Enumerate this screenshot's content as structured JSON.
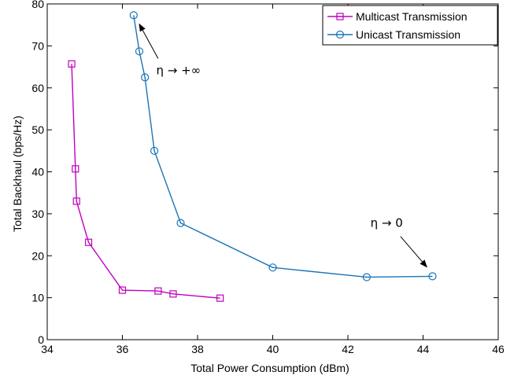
{
  "chart_data": {
    "type": "line",
    "title": "",
    "xlabel": "Total Power Consumption (dBm)",
    "ylabel": "Total Backhaul (bps/Hz)",
    "xlim": [
      34,
      46
    ],
    "ylim": [
      0,
      80
    ],
    "xticks": [
      34,
      36,
      38,
      40,
      42,
      44,
      46
    ],
    "yticks": [
      0,
      10,
      20,
      30,
      40,
      50,
      60,
      70,
      80
    ],
    "grid": false,
    "legend_position": "top-right",
    "series": [
      {
        "name": "Multicast Transmission",
        "color": "#c000c0",
        "marker": "square",
        "points": [
          {
            "x": 34.65,
            "y": 65.7
          },
          {
            "x": 34.75,
            "y": 40.7
          },
          {
            "x": 34.78,
            "y": 33.0
          },
          {
            "x": 35.1,
            "y": 23.2
          },
          {
            "x": 36.0,
            "y": 11.8
          },
          {
            "x": 36.95,
            "y": 11.6
          },
          {
            "x": 37.35,
            "y": 10.9
          },
          {
            "x": 38.6,
            "y": 9.9
          }
        ]
      },
      {
        "name": "Unicast Transmission",
        "color": "#1a75b8",
        "marker": "circle",
        "points": [
          {
            "x": 36.3,
            "y": 77.3
          },
          {
            "x": 36.45,
            "y": 68.7
          },
          {
            "x": 36.6,
            "y": 62.5
          },
          {
            "x": 36.85,
            "y": 45.0
          },
          {
            "x": 37.55,
            "y": 27.8
          },
          {
            "x": 40.0,
            "y": 17.2
          },
          {
            "x": 42.5,
            "y": 14.9
          },
          {
            "x": 44.25,
            "y": 15.1
          }
        ]
      }
    ],
    "annotations": [
      {
        "text": "η → +∞",
        "text_x": 36.9,
        "text_y": 63.2,
        "arrow_from": [
          36.95,
          67.0
        ],
        "arrow_to": [
          36.45,
          75.2
        ]
      },
      {
        "text": "η → 0",
        "text_x": 42.6,
        "text_y": 26.9,
        "arrow_from": [
          43.4,
          24.6
        ],
        "arrow_to": [
          44.1,
          17.3
        ]
      }
    ]
  }
}
